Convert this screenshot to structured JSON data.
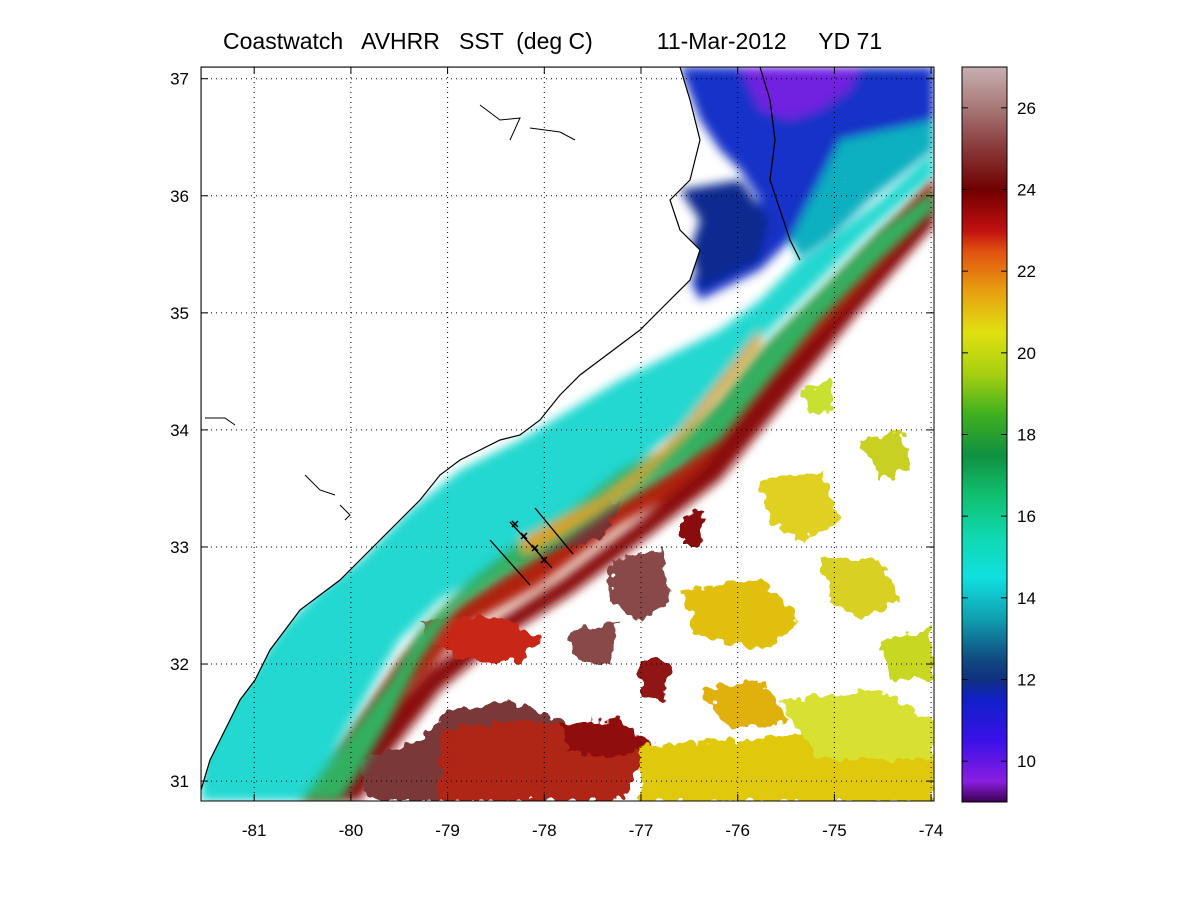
{
  "title": "Coastwatch   AVHRR   SST  (deg C)          11-Mar-2012     YD 71",
  "chart_data": {
    "type": "heatmap",
    "title": "Coastwatch   AVHRR   SST  (deg C)          11-Mar-2012     YD 71",
    "xlabel": "",
    "ylabel": "",
    "xlim": [
      -81.55,
      -73.97
    ],
    "ylim": [
      30.83,
      37.1
    ],
    "x_ticks": [
      -81,
      -80,
      -79,
      -78,
      -77,
      -76,
      -75,
      -74
    ],
    "y_ticks": [
      31,
      32,
      33,
      34,
      35,
      36,
      37
    ],
    "x_tick_labels": [
      "-81",
      "-80",
      "-79",
      "-78",
      "-77",
      "-76",
      "-75",
      "-74"
    ],
    "y_tick_labels": [
      "31",
      "32",
      "33",
      "34",
      "35",
      "36",
      "37"
    ],
    "grid": true,
    "colorbar": {
      "range": [
        9,
        27
      ],
      "ticks": [
        10,
        12,
        14,
        16,
        18,
        20,
        22,
        24,
        26
      ],
      "tick_labels": [
        "10",
        "12",
        "14",
        "16",
        "18",
        "20",
        "22",
        "24",
        "26"
      ],
      "colormap": [
        {
          "value": 9.0,
          "color": "#3a0050"
        },
        {
          "value": 9.5,
          "color": "#8a1ee0"
        },
        {
          "value": 10.5,
          "color": "#3a10e8"
        },
        {
          "value": 11.5,
          "color": "#1020c8"
        },
        {
          "value": 12.0,
          "color": "#103080"
        },
        {
          "value": 12.5,
          "color": "#104a80"
        },
        {
          "value": 13.5,
          "color": "#10a0b0"
        },
        {
          "value": 14.5,
          "color": "#10e0e0"
        },
        {
          "value": 15.5,
          "color": "#10d8b0"
        },
        {
          "value": 16.5,
          "color": "#10c070"
        },
        {
          "value": 17.5,
          "color": "#109040"
        },
        {
          "value": 18.5,
          "color": "#40b020"
        },
        {
          "value": 19.5,
          "color": "#a8d010"
        },
        {
          "value": 20.5,
          "color": "#e0e010"
        },
        {
          "value": 21.5,
          "color": "#e8a010"
        },
        {
          "value": 22.5,
          "color": "#e05010"
        },
        {
          "value": 23.0,
          "color": "#c01010"
        },
        {
          "value": 24.0,
          "color": "#700000"
        },
        {
          "value": 25.0,
          "color": "#883838"
        },
        {
          "value": 26.0,
          "color": "#a87878"
        },
        {
          "value": 27.0,
          "color": "#c8b0b0"
        }
      ]
    },
    "colors": {
      "frame": "#000000",
      "grid": "#000000",
      "land": "#ffffff",
      "coastline": "#000000"
    }
  }
}
